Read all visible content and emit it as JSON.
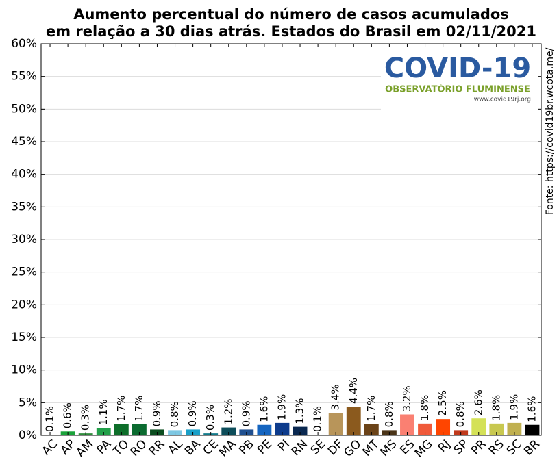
{
  "chart_data": {
    "type": "bar",
    "title": [
      "Aumento percentual do número de casos acumulados",
      "em relação a 30 dias atrás. Estados do Brasil em 02/11/2021"
    ],
    "source": "Fonte: https://covid19br.wcota.me/",
    "logo": {
      "name": "COVID-19",
      "org": "OBSERVATÓRIO FLUMINENSE",
      "url": "www.covid19rj.org"
    },
    "categories": [
      "AC",
      "AP",
      "AM",
      "PA",
      "TO",
      "RO",
      "RR",
      "AL",
      "BA",
      "CE",
      "MA",
      "PB",
      "PE",
      "PI",
      "RN",
      "SE",
      "DF",
      "GO",
      "MT",
      "MS",
      "ES",
      "MG",
      "RJ",
      "SP",
      "PR",
      "RS",
      "SC",
      "BR"
    ],
    "values": [
      0.1,
      0.6,
      0.3,
      1.1,
      1.7,
      1.7,
      0.9,
      0.8,
      0.9,
      0.3,
      1.2,
      0.9,
      1.6,
      1.9,
      1.3,
      0.1,
      3.4,
      4.4,
      1.7,
      0.8,
      3.2,
      1.8,
      2.5,
      0.8,
      2.6,
      1.8,
      1.9,
      1.6
    ],
    "value_labels": [
      "0.1%",
      "0.6%",
      "0.3%",
      "1.1%",
      "1.7%",
      "1.7%",
      "0.9%",
      "0.8%",
      "0.9%",
      "0.3%",
      "1.2%",
      "0.9%",
      "1.6%",
      "1.9%",
      "1.3%",
      "0.1%",
      "3.4%",
      "4.4%",
      "1.7%",
      "0.8%",
      "3.2%",
      "1.8%",
      "2.5%",
      "0.8%",
      "2.6%",
      "1.8%",
      "1.9%",
      "1.6%"
    ],
    "colors": [
      "#2e7d32",
      "#1aa33a",
      "#2e8b3a",
      "#22a04a",
      "#0d6e2a",
      "#0b6b30",
      "#0b4d1f",
      "#7ec8e3",
      "#1aa0c8",
      "#127a8a",
      "#0d4d5a",
      "#1f4f8f",
      "#1565c0",
      "#0d3b8c",
      "#0a2850",
      "#081830",
      "#b8955a",
      "#8b5a1e",
      "#6b4318",
      "#4a3418",
      "#fa8072",
      "#f05a3a",
      "#ff4500",
      "#c0391b",
      "#d4e157",
      "#c8c850",
      "#c0b050",
      "#000000"
    ],
    "ylim": [
      0,
      60
    ],
    "yticks": [
      {
        "value": 0,
        "label": "0%"
      },
      {
        "value": 5,
        "label": "5%"
      },
      {
        "value": 10,
        "label": "10%"
      },
      {
        "value": 15,
        "label": "15%"
      },
      {
        "value": 20,
        "label": "20%"
      },
      {
        "value": 25,
        "label": "25%"
      },
      {
        "value": 30,
        "label": "30%"
      },
      {
        "value": 35,
        "label": "35%"
      },
      {
        "value": 40,
        "label": "40%"
      },
      {
        "value": 45,
        "label": "45%"
      },
      {
        "value": 50,
        "label": "50%"
      },
      {
        "value": 55,
        "label": "55%"
      },
      {
        "value": 60,
        "label": "60%"
      }
    ],
    "grid": true
  }
}
